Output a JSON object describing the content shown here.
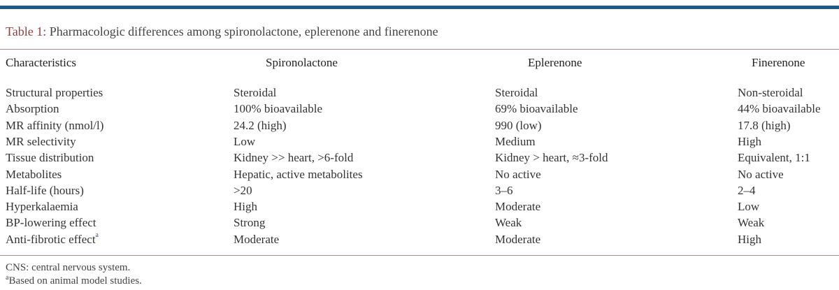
{
  "caption": {
    "label": "Table 1:",
    "text": " Pharmacologic differences among spironolactone, eplerenone and finerenone"
  },
  "headers": [
    "Characteristics",
    "Spironolactone",
    "Eplerenone",
    "Finerenone"
  ],
  "rows": [
    [
      "Structural properties",
      "Steroidal",
      "Steroidal",
      "Non-steroidal"
    ],
    [
      "Absorption",
      "100% bioavailable",
      "69% bioavailable",
      "44% bioavailable"
    ],
    [
      "MR affinity (nmol/l)",
      "24.2 (high)",
      "990 (low)",
      "17.8 (high)"
    ],
    [
      "MR selectivity",
      "Low",
      "Medium",
      "High"
    ],
    [
      "Tissue distribution",
      "Kidney >> heart, >6-fold",
      "Kidney > heart, ≈3-fold",
      "Equivalent, 1:1"
    ],
    [
      "Metabolites",
      "Hepatic, active metabolites",
      "No active",
      "No active"
    ],
    [
      "Half-life (hours)",
      ">20",
      "3–6",
      "2–4"
    ],
    [
      "Hyperkalaemia",
      "High",
      "Moderate",
      "Low"
    ],
    [
      "BP-lowering effect",
      "Strong",
      "Weak",
      "Weak"
    ],
    [
      "Anti-fibrotic effect",
      "Moderate",
      "Moderate",
      "High"
    ]
  ],
  "row_footnote_marker": "a",
  "footnotes": [
    {
      "marker": "",
      "text": "CNS: central nervous system."
    },
    {
      "marker": "a",
      "text": "Based on animal model studies."
    }
  ]
}
